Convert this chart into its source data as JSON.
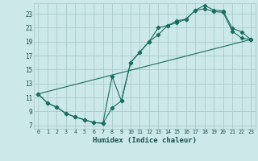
{
  "xlabel": "Humidex (Indice chaleur)",
  "bg_color": "#cce8e8",
  "grid_color": "#aacccc",
  "line_color": "#1a6e60",
  "xlim": [
    -0.5,
    23.5
  ],
  "ylim": [
    6.5,
    24.5
  ],
  "xticks": [
    0,
    1,
    2,
    3,
    4,
    5,
    6,
    7,
    8,
    9,
    10,
    11,
    12,
    13,
    14,
    15,
    16,
    17,
    18,
    19,
    20,
    21,
    22,
    23
  ],
  "yticks": [
    7,
    9,
    11,
    13,
    15,
    17,
    19,
    21,
    23
  ],
  "line1_x": [
    0,
    1,
    2,
    3,
    4,
    5,
    6,
    7,
    8,
    9,
    10,
    11,
    12,
    13,
    14,
    15,
    16,
    17,
    18,
    19,
    20,
    21,
    22,
    23
  ],
  "line1_y": [
    11.5,
    10.2,
    9.6,
    8.7,
    8.2,
    7.8,
    7.4,
    7.3,
    14.0,
    10.5,
    16.0,
    17.5,
    19.0,
    20.0,
    21.3,
    21.7,
    22.2,
    23.5,
    24.2,
    23.5,
    23.4,
    20.9,
    20.4,
    19.3
  ],
  "line2_x": [
    0,
    1,
    2,
    3,
    4,
    5,
    6,
    7,
    8,
    9,
    10,
    11,
    12,
    13,
    14,
    15,
    16,
    17,
    18,
    19,
    20,
    21,
    22,
    23
  ],
  "line2_y": [
    11.5,
    10.2,
    9.6,
    8.7,
    8.2,
    7.8,
    7.4,
    7.3,
    9.5,
    10.5,
    16.0,
    17.5,
    19.0,
    21.0,
    21.3,
    22.0,
    22.2,
    23.5,
    23.7,
    23.3,
    23.2,
    20.5,
    19.5,
    19.3
  ],
  "line3_x": [
    0,
    23
  ],
  "line3_y": [
    11.5,
    19.3
  ]
}
